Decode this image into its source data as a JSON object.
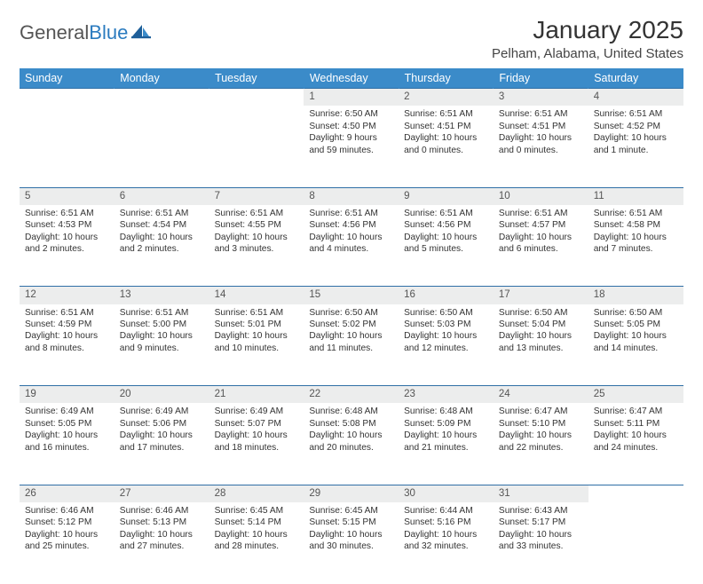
{
  "brand": {
    "part1": "General",
    "part2": "Blue"
  },
  "title": "January 2025",
  "location": "Pelham, Alabama, United States",
  "colors": {
    "header_bg": "#3b8bc9",
    "header_text": "#ffffff",
    "daynum_bg": "#eceded",
    "row_border": "#2f6fa6",
    "page_bg": "#ffffff",
    "text": "#333333",
    "logo_gray": "#555555",
    "logo_blue": "#2b7bbf"
  },
  "day_headers": [
    "Sunday",
    "Monday",
    "Tuesday",
    "Wednesday",
    "Thursday",
    "Friday",
    "Saturday"
  ],
  "weeks": [
    {
      "nums": [
        "",
        "",
        "",
        "1",
        "2",
        "3",
        "4"
      ],
      "cells": [
        null,
        null,
        null,
        {
          "sunrise": "Sunrise: 6:50 AM",
          "sunset": "Sunset: 4:50 PM",
          "daylight": "Daylight: 9 hours and 59 minutes."
        },
        {
          "sunrise": "Sunrise: 6:51 AM",
          "sunset": "Sunset: 4:51 PM",
          "daylight": "Daylight: 10 hours and 0 minutes."
        },
        {
          "sunrise": "Sunrise: 6:51 AM",
          "sunset": "Sunset: 4:51 PM",
          "daylight": "Daylight: 10 hours and 0 minutes."
        },
        {
          "sunrise": "Sunrise: 6:51 AM",
          "sunset": "Sunset: 4:52 PM",
          "daylight": "Daylight: 10 hours and 1 minute."
        }
      ]
    },
    {
      "nums": [
        "5",
        "6",
        "7",
        "8",
        "9",
        "10",
        "11"
      ],
      "cells": [
        {
          "sunrise": "Sunrise: 6:51 AM",
          "sunset": "Sunset: 4:53 PM",
          "daylight": "Daylight: 10 hours and 2 minutes."
        },
        {
          "sunrise": "Sunrise: 6:51 AM",
          "sunset": "Sunset: 4:54 PM",
          "daylight": "Daylight: 10 hours and 2 minutes."
        },
        {
          "sunrise": "Sunrise: 6:51 AM",
          "sunset": "Sunset: 4:55 PM",
          "daylight": "Daylight: 10 hours and 3 minutes."
        },
        {
          "sunrise": "Sunrise: 6:51 AM",
          "sunset": "Sunset: 4:56 PM",
          "daylight": "Daylight: 10 hours and 4 minutes."
        },
        {
          "sunrise": "Sunrise: 6:51 AM",
          "sunset": "Sunset: 4:56 PM",
          "daylight": "Daylight: 10 hours and 5 minutes."
        },
        {
          "sunrise": "Sunrise: 6:51 AM",
          "sunset": "Sunset: 4:57 PM",
          "daylight": "Daylight: 10 hours and 6 minutes."
        },
        {
          "sunrise": "Sunrise: 6:51 AM",
          "sunset": "Sunset: 4:58 PM",
          "daylight": "Daylight: 10 hours and 7 minutes."
        }
      ]
    },
    {
      "nums": [
        "12",
        "13",
        "14",
        "15",
        "16",
        "17",
        "18"
      ],
      "cells": [
        {
          "sunrise": "Sunrise: 6:51 AM",
          "sunset": "Sunset: 4:59 PM",
          "daylight": "Daylight: 10 hours and 8 minutes."
        },
        {
          "sunrise": "Sunrise: 6:51 AM",
          "sunset": "Sunset: 5:00 PM",
          "daylight": "Daylight: 10 hours and 9 minutes."
        },
        {
          "sunrise": "Sunrise: 6:51 AM",
          "sunset": "Sunset: 5:01 PM",
          "daylight": "Daylight: 10 hours and 10 minutes."
        },
        {
          "sunrise": "Sunrise: 6:50 AM",
          "sunset": "Sunset: 5:02 PM",
          "daylight": "Daylight: 10 hours and 11 minutes."
        },
        {
          "sunrise": "Sunrise: 6:50 AM",
          "sunset": "Sunset: 5:03 PM",
          "daylight": "Daylight: 10 hours and 12 minutes."
        },
        {
          "sunrise": "Sunrise: 6:50 AM",
          "sunset": "Sunset: 5:04 PM",
          "daylight": "Daylight: 10 hours and 13 minutes."
        },
        {
          "sunrise": "Sunrise: 6:50 AM",
          "sunset": "Sunset: 5:05 PM",
          "daylight": "Daylight: 10 hours and 14 minutes."
        }
      ]
    },
    {
      "nums": [
        "19",
        "20",
        "21",
        "22",
        "23",
        "24",
        "25"
      ],
      "cells": [
        {
          "sunrise": "Sunrise: 6:49 AM",
          "sunset": "Sunset: 5:05 PM",
          "daylight": "Daylight: 10 hours and 16 minutes."
        },
        {
          "sunrise": "Sunrise: 6:49 AM",
          "sunset": "Sunset: 5:06 PM",
          "daylight": "Daylight: 10 hours and 17 minutes."
        },
        {
          "sunrise": "Sunrise: 6:49 AM",
          "sunset": "Sunset: 5:07 PM",
          "daylight": "Daylight: 10 hours and 18 minutes."
        },
        {
          "sunrise": "Sunrise: 6:48 AM",
          "sunset": "Sunset: 5:08 PM",
          "daylight": "Daylight: 10 hours and 20 minutes."
        },
        {
          "sunrise": "Sunrise: 6:48 AM",
          "sunset": "Sunset: 5:09 PM",
          "daylight": "Daylight: 10 hours and 21 minutes."
        },
        {
          "sunrise": "Sunrise: 6:47 AM",
          "sunset": "Sunset: 5:10 PM",
          "daylight": "Daylight: 10 hours and 22 minutes."
        },
        {
          "sunrise": "Sunrise: 6:47 AM",
          "sunset": "Sunset: 5:11 PM",
          "daylight": "Daylight: 10 hours and 24 minutes."
        }
      ]
    },
    {
      "nums": [
        "26",
        "27",
        "28",
        "29",
        "30",
        "31",
        ""
      ],
      "cells": [
        {
          "sunrise": "Sunrise: 6:46 AM",
          "sunset": "Sunset: 5:12 PM",
          "daylight": "Daylight: 10 hours and 25 minutes."
        },
        {
          "sunrise": "Sunrise: 6:46 AM",
          "sunset": "Sunset: 5:13 PM",
          "daylight": "Daylight: 10 hours and 27 minutes."
        },
        {
          "sunrise": "Sunrise: 6:45 AM",
          "sunset": "Sunset: 5:14 PM",
          "daylight": "Daylight: 10 hours and 28 minutes."
        },
        {
          "sunrise": "Sunrise: 6:45 AM",
          "sunset": "Sunset: 5:15 PM",
          "daylight": "Daylight: 10 hours and 30 minutes."
        },
        {
          "sunrise": "Sunrise: 6:44 AM",
          "sunset": "Sunset: 5:16 PM",
          "daylight": "Daylight: 10 hours and 32 minutes."
        },
        {
          "sunrise": "Sunrise: 6:43 AM",
          "sunset": "Sunset: 5:17 PM",
          "daylight": "Daylight: 10 hours and 33 minutes."
        },
        null
      ]
    }
  ]
}
